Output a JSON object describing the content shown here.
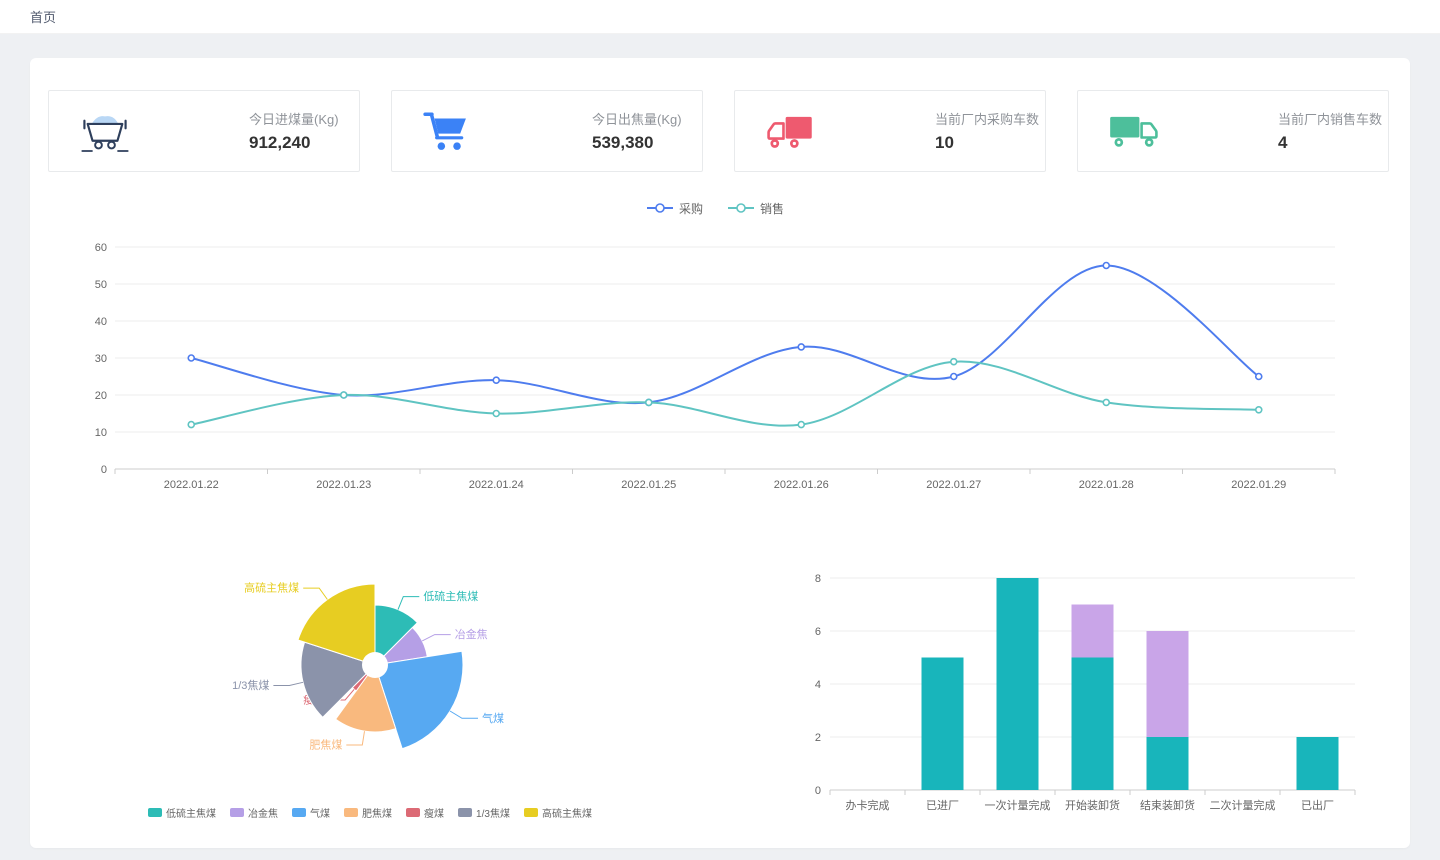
{
  "breadcrumb": {
    "home": "首页"
  },
  "stat_cards": [
    {
      "label": "今日进煤量(Kg)",
      "value": "912,240",
      "icon": "minecart-icon",
      "icon_color": "#2e3f5c",
      "icon_accent": "#b9d7f5"
    },
    {
      "label": "今日出焦量(Kg)",
      "value": "539,380",
      "icon": "shopping-cart-icon",
      "icon_color": "#3b82f6"
    },
    {
      "label": "当前厂内采购车数",
      "value": "10",
      "icon": "purchase-truck-icon",
      "icon_color": "#ee5a6f"
    },
    {
      "label": "当前厂内销售车数",
      "value": "4",
      "icon": "sales-truck-icon",
      "icon_color": "#4dbf9b"
    }
  ],
  "chart_data": [
    {
      "type": "line",
      "smooth": true,
      "grid": true,
      "legend_position": "top",
      "x": [
        "2022.01.22",
        "2022.01.23",
        "2022.01.24",
        "2022.01.25",
        "2022.01.26",
        "2022.01.27",
        "2022.01.28",
        "2022.01.29"
      ],
      "ylim": [
        0,
        60
      ],
      "ytick_step": 10,
      "series": [
        {
          "name": "采购",
          "color": "#4e7cee",
          "values": [
            30,
            20,
            24,
            18,
            33,
            25,
            55,
            25
          ]
        },
        {
          "name": "销售",
          "color": "#5fc4c2",
          "values": [
            12,
            20,
            15,
            18,
            12,
            29,
            18,
            16
          ]
        }
      ]
    },
    {
      "type": "pie",
      "variant": "rose",
      "legend_position": "bottom",
      "labels": [
        "低硫主焦煤",
        "冶金焦",
        "气煤",
        "肥焦煤",
        "瘦煤",
        "1/3焦煤",
        "高硫主焦煤"
      ],
      "values": [
        5,
        4,
        9,
        6,
        1,
        7,
        8
      ],
      "colors": [
        "#2dbcb6",
        "#b59fe6",
        "#57a9f2",
        "#f9b97e",
        "#dc6a75",
        "#8b93aa",
        "#e7cd22"
      ]
    },
    {
      "type": "bar",
      "variant": "stacked",
      "grid": true,
      "categories": [
        "办卡完成",
        "已进厂",
        "一次计量完成",
        "开始装卸货",
        "结束装卸货",
        "二次计量完成",
        "已出厂"
      ],
      "ylim": [
        0,
        8
      ],
      "ytick_step": 2,
      "series": [
        {
          "color": "#18b5bb",
          "values": [
            0,
            5,
            8,
            5,
            2,
            0,
            2
          ]
        },
        {
          "color": "#c9a5e8",
          "values": [
            0,
            0,
            0,
            2,
            4,
            0,
            0
          ]
        }
      ]
    }
  ],
  "colors": {
    "page_background": "#eef0f3",
    "panel_background": "#ffffff",
    "axis_label": "#666666",
    "grid_line": "#ececec",
    "axis_line": "#cccccc"
  }
}
